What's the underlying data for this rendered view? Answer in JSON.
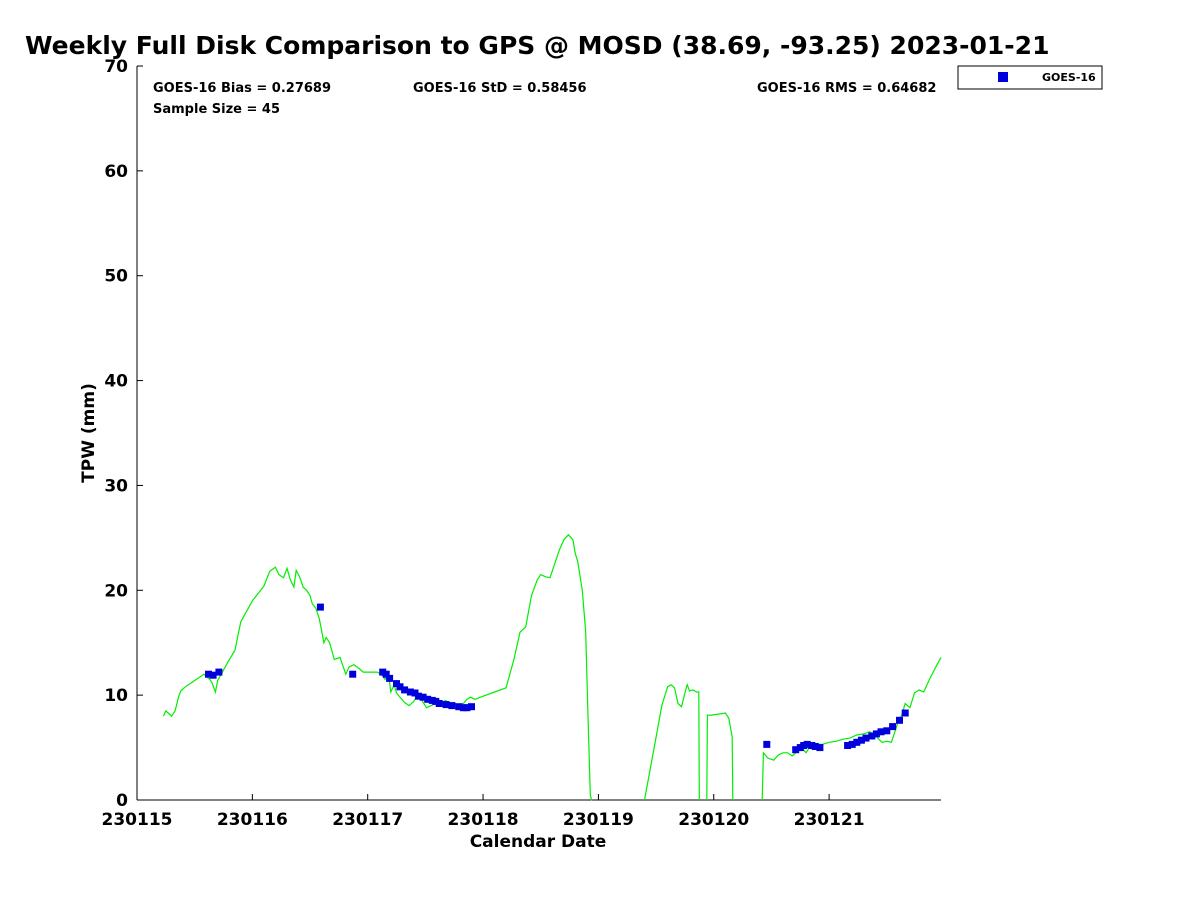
{
  "chart_data": {
    "type": "scatter",
    "title": "Weekly Full Disk Comparison to GPS @ MOSD (38.69, -93.25) 2023-01-21",
    "xlabel": "Calendar Date",
    "ylabel": "TPW (mm)",
    "xlim": [
      230115.0,
      230121.97
    ],
    "ylim": [
      0,
      70
    ],
    "x_ticks": [
      230115,
      230116,
      230117,
      230118,
      230119,
      230120,
      230121
    ],
    "x_tick_labels": [
      "230115",
      "230116",
      "230117",
      "230118",
      "230119",
      "230120",
      "230121"
    ],
    "y_ticks": [
      0,
      10,
      20,
      30,
      40,
      50,
      60,
      70
    ],
    "y_tick_labels": [
      "0",
      "10",
      "20",
      "30",
      "40",
      "50",
      "60",
      "70"
    ],
    "stats": {
      "bias": "GOES-16 Bias = 0.27689",
      "std": "GOES-16 StD = 0.58456",
      "rms": "GOES-16 RMS = 0.64682",
      "sample": "Sample Size = 45"
    },
    "legend": {
      "label": "GOES-16",
      "placement": "top-right outside"
    },
    "colors": {
      "goes16": "#0000dd",
      "gps": "#00ee00"
    },
    "series": [
      {
        "name": "GOES-16",
        "kind": "scatter",
        "x": [
          230115.62,
          230115.66,
          230115.71,
          230116.59,
          230116.87,
          230117.13,
          230117.16,
          230117.19,
          230117.25,
          230117.28,
          230117.32,
          230117.37,
          230117.41,
          230117.44,
          230117.48,
          230117.52,
          230117.56,
          230117.59,
          230117.62,
          230117.68,
          230117.73,
          230117.79,
          230117.83,
          230117.86,
          230117.9,
          230120.46,
          230120.71,
          230120.75,
          230120.78,
          230120.81,
          230120.85,
          230120.88,
          230120.92,
          230121.16,
          230121.2,
          230121.24,
          230121.28,
          230121.32,
          230121.37,
          230121.41,
          230121.45,
          230121.5,
          230121.55,
          230121.61,
          230121.66
        ],
        "y": [
          12.0,
          11.9,
          12.2,
          18.4,
          12.0,
          12.2,
          12.0,
          11.6,
          11.1,
          10.8,
          10.5,
          10.3,
          10.2,
          9.9,
          9.8,
          9.6,
          9.5,
          9.4,
          9.2,
          9.1,
          9.0,
          8.9,
          8.8,
          8.8,
          8.9,
          5.3,
          4.8,
          5.0,
          5.2,
          5.3,
          5.2,
          5.1,
          5.0,
          5.2,
          5.3,
          5.5,
          5.7,
          5.9,
          6.1,
          6.3,
          6.5,
          6.6,
          7.0,
          7.6,
          8.3
        ]
      },
      {
        "name": "",
        "kind": "line",
        "segments": [
          {
            "x": [
              230115.23,
              230115.25,
              230115.27,
              230115.3,
              230115.33,
              230115.36,
              230115.38,
              230115.42,
              230115.5,
              230115.58,
              230115.63,
              230115.65,
              230115.68,
              230115.7,
              230115.74,
              230115.78,
              230115.85,
              230115.9,
              230116.0,
              230116.1,
              230116.15,
              230116.2,
              230116.23,
              230116.27,
              230116.3,
              230116.33,
              230116.36,
              230116.38,
              230116.41,
              230116.44,
              230116.47,
              230116.5,
              230116.52,
              230116.55,
              230116.58,
              230116.62,
              230116.64,
              230116.67,
              230116.71,
              230116.76,
              230116.81,
              230116.84,
              230116.88,
              230116.93,
              230116.96,
              230117.0,
              230117.04,
              230117.08,
              230117.12,
              230117.15,
              230117.18,
              230117.2,
              230117.23,
              230117.25,
              230117.28,
              230117.32,
              230117.36,
              230117.4,
              230117.43,
              230117.47,
              230117.51,
              230117.55,
              230117.59,
              230117.63,
              230117.67,
              230117.71,
              230117.75,
              230117.79,
              230117.83,
              230117.86,
              230117.89,
              230117.93,
              230118.0,
              230118.1,
              230118.2,
              230118.27,
              230118.32,
              230118.37,
              230118.42,
              230118.47,
              230118.5,
              230118.54,
              230118.58,
              230118.62,
              230118.66,
              230118.7,
              230118.74,
              230118.78,
              230118.8,
              230118.82,
              230118.86,
              230118.89,
              230118.91,
              230118.93,
              230118.94,
              230118.945
            ],
            "y": [
              8.0,
              8.5,
              8.3,
              8.0,
              8.5,
              9.8,
              10.4,
              10.8,
              11.4,
              12.0,
              11.5,
              11.2,
              10.3,
              11.4,
              12.2,
              13.0,
              14.3,
              17.0,
              19.0,
              20.4,
              21.8,
              22.2,
              21.5,
              21.2,
              22.1,
              21.0,
              20.3,
              21.9,
              21.3,
              20.3,
              20.0,
              19.5,
              18.7,
              18.3,
              17.3,
              15.0,
              15.5,
              15.0,
              13.4,
              13.6,
              12.0,
              12.7,
              12.9,
              12.5,
              12.2,
              12.2,
              12.2,
              12.2,
              12.0,
              11.5,
              12.0,
              10.3,
              11.0,
              10.2,
              9.8,
              9.3,
              9.0,
              9.4,
              10.0,
              9.5,
              8.8,
              9.0,
              9.2,
              9.1,
              9.5,
              9.3,
              9.2,
              9.1,
              9.2,
              9.6,
              9.8,
              9.6,
              9.9,
              10.3,
              10.7,
              13.5,
              16.0,
              16.5,
              19.5,
              21.0,
              21.5,
              21.3,
              21.2,
              22.5,
              23.8,
              24.8,
              25.3,
              24.8,
              23.5,
              22.8,
              20.0,
              16.0,
              8.0,
              0.5,
              0.0,
              0.0
            ]
          },
          {
            "x": [
              230119.4,
              230119.45,
              230119.5,
              230119.55,
              230119.6,
              230119.63,
              230119.66,
              230119.69,
              230119.72,
              230119.75,
              230119.77,
              230119.79,
              230119.82,
              230119.85,
              230119.87,
              230119.875
            ],
            "y": [
              0.0,
              3.0,
              6.0,
              9.0,
              10.8,
              11.0,
              10.7,
              9.2,
              8.9,
              10.2,
              11.0,
              10.4,
              10.5,
              10.3,
              10.3,
              0.0
            ]
          },
          {
            "x": [
              230119.94,
              230119.945,
              230119.98,
              230120.05,
              230120.1,
              230120.13,
              230120.16,
              230120.165
            ],
            "y": [
              0.0,
              8.1,
              8.1,
              8.2,
              8.3,
              7.8,
              6.0,
              0.0
            ]
          },
          {
            "x": [
              230120.42,
              230120.43,
              230120.47,
              230120.52,
              230120.56,
              230120.6,
              230120.64,
              230120.68,
              230120.72,
              230120.76,
              230120.8,
              230120.84,
              230120.88,
              230120.94,
              230121.0,
              230121.06,
              230121.12,
              230121.18,
              230121.24,
              230121.3,
              230121.35,
              230121.4,
              230121.43,
              230121.46,
              230121.5,
              230121.54,
              230121.57,
              230121.6,
              230121.63,
              230121.66,
              230121.7,
              230121.74,
              230121.78,
              230121.82,
              230121.87,
              230121.93,
              230121.97
            ],
            "y": [
              0.0,
              4.5,
              4.0,
              3.8,
              4.3,
              4.5,
              4.5,
              4.2,
              4.6,
              5.0,
              4.5,
              5.2,
              5.3,
              5.3,
              5.5,
              5.6,
              5.8,
              5.9,
              6.2,
              6.3,
              6.5,
              6.2,
              5.8,
              5.5,
              5.6,
              5.5,
              6.5,
              7.5,
              8.1,
              9.2,
              8.8,
              10.2,
              10.5,
              10.3,
              11.5,
              12.8,
              13.6
            ]
          }
        ]
      }
    ]
  }
}
